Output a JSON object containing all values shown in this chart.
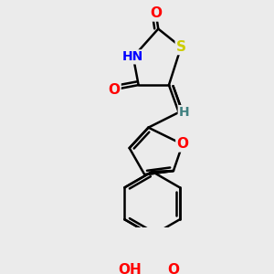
{
  "bg_color": "#ebebeb",
  "atom_colors": {
    "C": "#000000",
    "H": "#408080",
    "N": "#0000ff",
    "O": "#ff0000",
    "S": "#cccc00"
  },
  "bond_color": "#000000",
  "bond_width": 1.8,
  "font_size_atom": 10,
  "title": ""
}
